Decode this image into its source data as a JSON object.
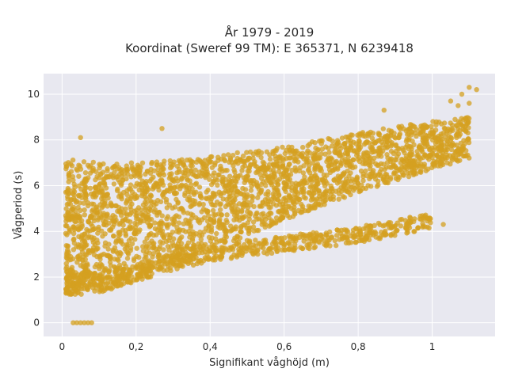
{
  "chart_data": {
    "type": "scatter",
    "title_line1": "År 1979 - 2019",
    "title_line2": "Koordinat (Sweref 99 TM): E 365371, N 6239418",
    "xlabel": "Signifikant våghöjd (m)",
    "ylabel": "Vågperiod (s)",
    "xlim": [
      -0.05,
      1.17
    ],
    "ylim": [
      -0.6,
      10.9
    ],
    "x_ticks": [
      0,
      0.2,
      0.4,
      0.6,
      0.8,
      1
    ],
    "x_tick_labels": [
      "0",
      "0,2",
      "0,4",
      "0,6",
      "0,8",
      "1"
    ],
    "y_ticks": [
      0,
      2,
      4,
      6,
      8,
      10
    ],
    "y_tick_labels": [
      "0",
      "2",
      "4",
      "6",
      "8",
      "10"
    ],
    "grid": true,
    "legend": "none",
    "marker_color": "#D4A020",
    "plot_background": "#E8E8F0",
    "main_band": {
      "x": [
        0.01,
        0.1,
        0.2,
        0.3,
        0.4,
        0.5,
        0.6,
        0.7,
        0.8,
        0.9,
        1.0,
        1.1
      ],
      "y_low": [
        1.2,
        1.5,
        2.0,
        2.6,
        3.2,
        3.8,
        4.5,
        5.1,
        5.7,
        6.2,
        6.7,
        7.2
      ],
      "y_high": [
        7.2,
        7.0,
        7.0,
        7.1,
        7.3,
        7.5,
        7.7,
        8.0,
        8.3,
        8.6,
        8.8,
        9.0
      ]
    },
    "lower_band": {
      "x": [
        0.01,
        0.1,
        0.2,
        0.3,
        0.4,
        0.5,
        0.6,
        0.7,
        0.8,
        0.9,
        1.0
      ],
      "y_low": [
        1.2,
        1.3,
        1.8,
        2.3,
        2.7,
        2.9,
        3.1,
        3.3,
        3.5,
        3.8,
        4.1
      ],
      "y_high": [
        2.2,
        2.2,
        2.6,
        3.0,
        3.3,
        3.6,
        3.8,
        4.0,
        4.2,
        4.5,
        4.8
      ]
    },
    "outliers": [
      {
        "x": 0.03,
        "y": 0
      },
      {
        "x": 0.04,
        "y": 0
      },
      {
        "x": 0.05,
        "y": 0
      },
      {
        "x": 0.06,
        "y": 0
      },
      {
        "x": 0.07,
        "y": 0
      },
      {
        "x": 0.08,
        "y": 0
      },
      {
        "x": 1.1,
        "y": 10.3
      },
      {
        "x": 1.12,
        "y": 10.2
      },
      {
        "x": 1.08,
        "y": 10.0
      },
      {
        "x": 1.05,
        "y": 9.7
      },
      {
        "x": 1.07,
        "y": 9.5
      },
      {
        "x": 0.87,
        "y": 9.3
      },
      {
        "x": 1.1,
        "y": 9.6
      },
      {
        "x": 0.27,
        "y": 8.5
      },
      {
        "x": 0.05,
        "y": 8.1
      },
      {
        "x": 0.98,
        "y": 4.2
      },
      {
        "x": 1.03,
        "y": 4.3
      }
    ]
  }
}
